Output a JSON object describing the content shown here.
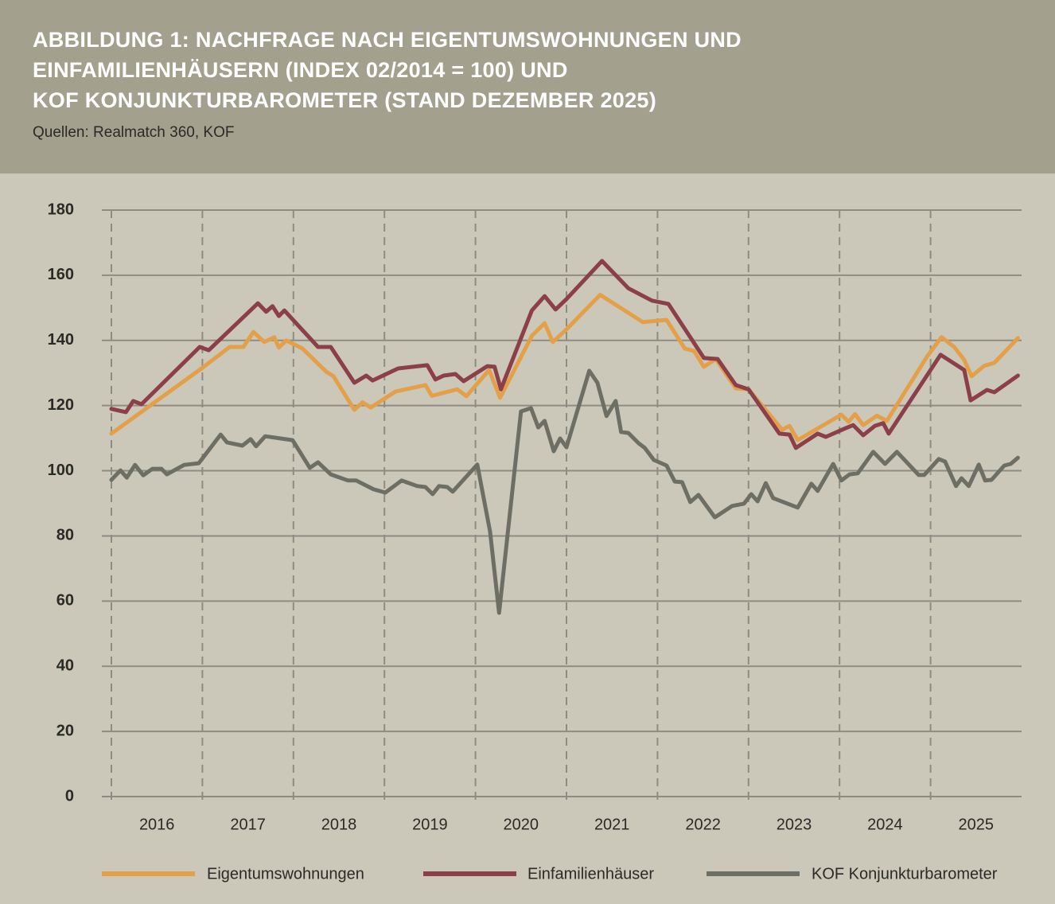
{
  "chart_data": {
    "type": "line",
    "title": [
      "ABBILDUNG 1: NACHFRAGE NACH EIGENTUMSWOHNUNGEN UND",
      "EINFAMILIENHÄUSERN (INDEX 02/2014 = 100) UND",
      "KOF KONJUNKTURBAROMETER (STAND DEZEMBER 2025)"
    ],
    "subtitle": "Quellen: Realmatch 360, KOF",
    "xlim": [
      2016,
      2026
    ],
    "xticks": [
      {
        "value": 2016.5,
        "label": "2016"
      },
      {
        "value": 2017.5,
        "label": "2017"
      },
      {
        "value": 2018.5,
        "label": "2018"
      },
      {
        "value": 2019.5,
        "label": "2019"
      },
      {
        "value": 2020.5,
        "label": "2020"
      },
      {
        "value": 2021.5,
        "label": "2021"
      },
      {
        "value": 2022.5,
        "label": "2022"
      },
      {
        "value": 2023.5,
        "label": "2023"
      },
      {
        "value": 2024.5,
        "label": "2024"
      },
      {
        "value": 2025.5,
        "label": "2025"
      }
    ],
    "xgrid": [
      2016,
      2017,
      2018,
      2019,
      2020,
      2021,
      2022,
      2023,
      2024,
      2025
    ],
    "ylim": [
      0,
      180
    ],
    "yticks": [
      0,
      20,
      40,
      60,
      80,
      100,
      120,
      140,
      160,
      180
    ],
    "grid": true,
    "legend": "bottom",
    "series": [
      {
        "name": "Eigentumswohnungen",
        "color": "#e3a048",
        "x": [
          2016,
          2017,
          2017.3,
          2017.45,
          2017.56,
          2017.68,
          2017.79,
          2017.84,
          2017.92,
          2018.1,
          2018.36,
          2018.44,
          2018.67,
          2018.76,
          2018.85,
          2019.12,
          2019.45,
          2019.52,
          2019.8,
          2019.9,
          2020.15,
          2020.27,
          2020.62,
          2020.76,
          2020.85,
          2021,
          2021.37,
          2021.84,
          2022.1,
          2022.3,
          2022.4,
          2022.51,
          2022.64,
          2022.86,
          2023,
          2023.37,
          2023.45,
          2023.54,
          2024.02,
          2024.1,
          2024.17,
          2024.26,
          2024.41,
          2024.52,
          2024.96,
          2025.12,
          2025.26,
          2025.37,
          2025.45,
          2025.59,
          2025.7,
          2025.96
        ],
        "values": [
          111.4,
          131.6,
          138,
          138,
          142.6,
          139.5,
          141,
          137.8,
          140,
          137.5,
          130.4,
          129,
          118.7,
          121,
          119.4,
          124.3,
          126.3,
          123,
          125,
          122.9,
          130.9,
          122.4,
          141.4,
          145.3,
          139.5,
          143.4,
          154,
          145.6,
          146.3,
          137.5,
          136.8,
          131.9,
          134.3,
          125.3,
          125,
          112.6,
          113.8,
          109.4,
          117.2,
          115,
          117.4,
          114,
          116.9,
          115.3,
          135,
          141,
          138,
          134,
          129,
          132.2,
          133.1,
          140.7
        ]
      },
      {
        "name": "Einfamilienhäuser",
        "color": "#8c3f48",
        "x": [
          2016,
          2016.16,
          2016.24,
          2016.33,
          2016.97,
          2017.07,
          2017.61,
          2017.7,
          2017.77,
          2017.84,
          2017.9,
          2018.27,
          2018.41,
          2018.67,
          2018.8,
          2018.87,
          2019.15,
          2019.47,
          2019.56,
          2019.65,
          2019.78,
          2019.87,
          2020.13,
          2020.21,
          2020.28,
          2020.62,
          2020.76,
          2020.88,
          2021,
          2021.22,
          2021.39,
          2021.68,
          2021.94,
          2022.12,
          2022.51,
          2022.66,
          2022.86,
          2023,
          2023.34,
          2023.45,
          2023.52,
          2023.76,
          2023.85,
          2024.07,
          2024.15,
          2024.26,
          2024.39,
          2024.48,
          2024.54,
          2025.11,
          2025.37,
          2025.44,
          2025.62,
          2025.7,
          2025.96
        ],
        "values": [
          119,
          118,
          121.4,
          120.4,
          138,
          137,
          151.4,
          148.8,
          150.5,
          147.5,
          149.2,
          138,
          138,
          127,
          129.2,
          127.7,
          131.4,
          132.4,
          128,
          129.2,
          129.7,
          127.5,
          132.1,
          131.9,
          125,
          149.2,
          153.6,
          149.5,
          152.7,
          159.3,
          164.4,
          156,
          152.2,
          151.2,
          134.6,
          134.3,
          126.3,
          125,
          111.4,
          111.1,
          107,
          111.4,
          110.4,
          113.1,
          114,
          110.9,
          113.8,
          114.6,
          111.4,
          135.6,
          130.9,
          121.6,
          124.8,
          124.1,
          129.2
        ]
      },
      {
        "name": "KOF Konjunkturbarometer",
        "color": "#6e6f64",
        "x": [
          2016,
          2016.1,
          2016.17,
          2016.26,
          2016.35,
          2016.45,
          2016.55,
          2016.61,
          2016.8,
          2016.96,
          2017.2,
          2017.27,
          2017.44,
          2017.53,
          2017.59,
          2017.69,
          2017.99,
          2018.18,
          2018.27,
          2018.41,
          2018.6,
          2018.69,
          2018.88,
          2019.01,
          2019.19,
          2019.36,
          2019.45,
          2019.53,
          2019.6,
          2019.69,
          2019.75,
          2020.02,
          2020.16,
          2020.26,
          2020.5,
          2020.61,
          2020.69,
          2020.76,
          2020.86,
          2020.93,
          2021,
          2021.25,
          2021.34,
          2021.44,
          2021.54,
          2021.6,
          2021.68,
          2021.79,
          2021.86,
          2021.96,
          2022.1,
          2022.19,
          2022.27,
          2022.36,
          2022.45,
          2022.63,
          2022.82,
          2022.95,
          2023.03,
          2023.1,
          2023.19,
          2023.27,
          2023.54,
          2023.69,
          2023.76,
          2023.93,
          2024.02,
          2024.11,
          2024.2,
          2024.37,
          2024.5,
          2024.63,
          2024.87,
          2024.93,
          2025.09,
          2025.16,
          2025.28,
          2025.34,
          2025.42,
          2025.53,
          2025.6,
          2025.67,
          2025.81,
          2025.88,
          2025.96
        ],
        "values": [
          97.2,
          100.1,
          97.9,
          101.8,
          98.6,
          100.6,
          100.6,
          98.9,
          101.8,
          102.3,
          111.1,
          108.7,
          107.7,
          109.7,
          107.5,
          110.6,
          109.4,
          100.9,
          102.6,
          98.9,
          97,
          97,
          94.3,
          93.3,
          97,
          95.3,
          95,
          92.8,
          95.3,
          95,
          93.6,
          101.9,
          81.4,
          56.4,
          118.2,
          119.2,
          113.3,
          115.3,
          106,
          109.9,
          107.2,
          130.7,
          127,
          116.8,
          121.4,
          111.9,
          111.6,
          108.5,
          107,
          103.3,
          101.6,
          96.7,
          96.5,
          90.4,
          92.6,
          85.7,
          89.2,
          89.9,
          92.8,
          90.6,
          96.2,
          91.6,
          88.7,
          96,
          93.8,
          102.1,
          97,
          98.9,
          99.2,
          105.8,
          102.1,
          105.8,
          98.7,
          98.7,
          103.6,
          102.8,
          95.3,
          97.7,
          95.3,
          101.9,
          97,
          97.2,
          101.6,
          102.1,
          104
        ]
      }
    ]
  }
}
